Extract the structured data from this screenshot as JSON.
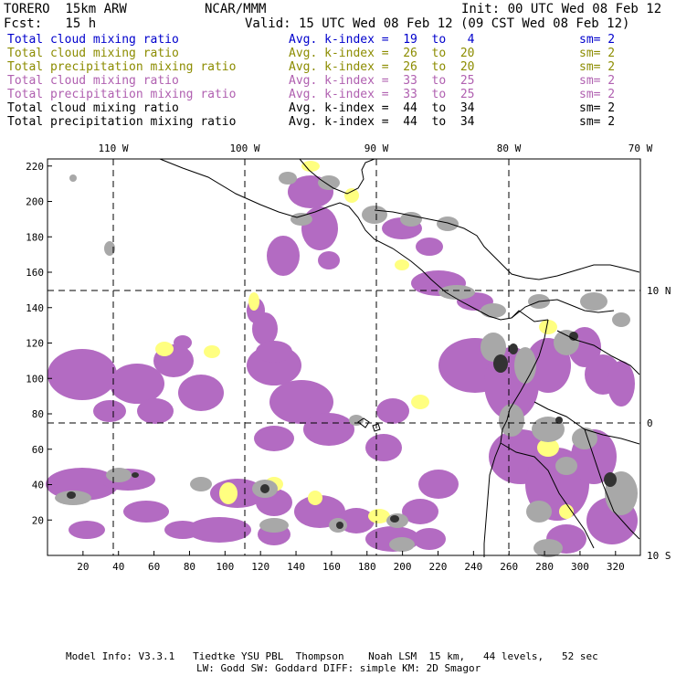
{
  "header": {
    "model": "TORERO  15km ARW",
    "center": "NCAR/MMM",
    "init": "Init: 00 UTC Wed 08 Feb 12",
    "fcst": "Fcst:   15 h",
    "valid": "Valid: 15 UTC Wed 08 Feb 12 (09 CST Wed 08 Feb 12)"
  },
  "legend": [
    {
      "field": "Total cloud mixing ratio",
      "kindex": "Avg. k-index =  19  to   4",
      "sm": "sm= 2",
      "color": "#0000cc"
    },
    {
      "field": "Total cloud mixing ratio",
      "kindex": "Avg. k-index =  26  to  20",
      "sm": "sm= 2",
      "color": "#8c8c00"
    },
    {
      "field": "Total precipitation mixing ratio",
      "kindex": "Avg. k-index =  26  to  20",
      "sm": "sm= 2",
      "color": "#8c8c00"
    },
    {
      "field": "Total cloud mixing ratio",
      "kindex": "Avg. k-index =  33  to  25",
      "sm": "sm= 2",
      "color": "#b060b0"
    },
    {
      "field": "Total precipitation mixing ratio",
      "kindex": "Avg. k-index =  33  to  25",
      "sm": "sm= 2",
      "color": "#b060b0"
    },
    {
      "field": "Total cloud mixing ratio",
      "kindex": "Avg. k-index =  44  to  34",
      "sm": "sm= 2",
      "color": "#000000"
    },
    {
      "field": "Total precipitation mixing ratio",
      "kindex": "Avg. k-index =  44  to  34",
      "sm": "sm= 2",
      "color": "#000000"
    }
  ],
  "map": {
    "lon_labels": [
      "110 W",
      "100 W",
      "90 W",
      "80 W",
      "70 W"
    ],
    "lat_labels": [
      "10 N",
      "0",
      "10 S"
    ],
    "x_ticks": [
      "20",
      "40",
      "60",
      "80",
      "100",
      "120",
      "140",
      "160",
      "180",
      "200",
      "220",
      "240",
      "260",
      "280",
      "300",
      "320"
    ],
    "y_ticks": [
      "20",
      "40",
      "60",
      "80",
      "100",
      "120",
      "140",
      "160",
      "180",
      "200",
      "220"
    ],
    "colors": {
      "purple": "#b36bc2",
      "gray": "#a8a8a8",
      "yellow": "#ffff80",
      "dark": "#333333"
    }
  },
  "footer": {
    "line1": "Model Info: V3.3.1   Tiedtke YSU PBL  Thompson    Noah LSM  15 km,   44 levels,   52 sec",
    "line2": "LW: Godd SW: Goddard DIFF: simple KM: 2D Smagor"
  }
}
